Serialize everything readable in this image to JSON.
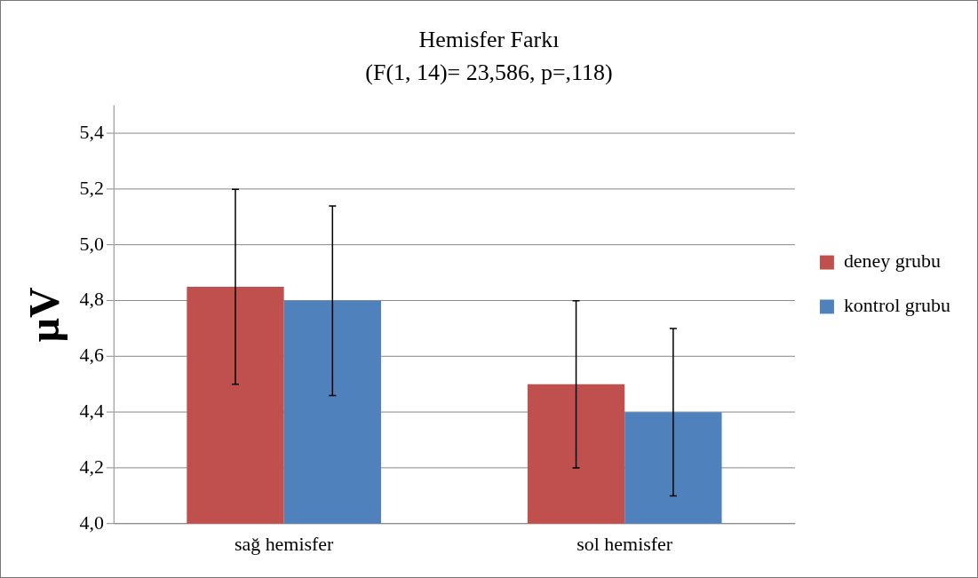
{
  "chart_data": {
    "type": "bar",
    "title": "Hemisfer Farkı",
    "subtitle": "(F(1, 14)= 23,586, p=,118)",
    "ylabel": "µV",
    "categories": [
      "sağ hemisfer",
      "sol hemisfer"
    ],
    "series": [
      {
        "name": "deney grubu",
        "color": "#c0504d",
        "values": [
          4.85,
          4.5
        ],
        "errors": [
          0.35,
          0.3
        ]
      },
      {
        "name": "kontrol grubu",
        "color": "#4f81bd",
        "values": [
          4.8,
          4.4
        ],
        "errors": [
          0.34,
          0.3
        ]
      }
    ],
    "ylim": [
      4.0,
      5.5
    ],
    "yticks": [
      {
        "value": 4.0,
        "label": "4,0"
      },
      {
        "value": 4.2,
        "label": "4,2"
      },
      {
        "value": 4.4,
        "label": "4,4"
      },
      {
        "value": 4.6,
        "label": "4,6"
      },
      {
        "value": 4.8,
        "label": "4,8"
      },
      {
        "value": 5.0,
        "label": "5,0"
      },
      {
        "value": 5.2,
        "label": "5,2"
      },
      {
        "value": 5.4,
        "label": "5,4"
      }
    ],
    "grid": "y",
    "legend": "right"
  }
}
